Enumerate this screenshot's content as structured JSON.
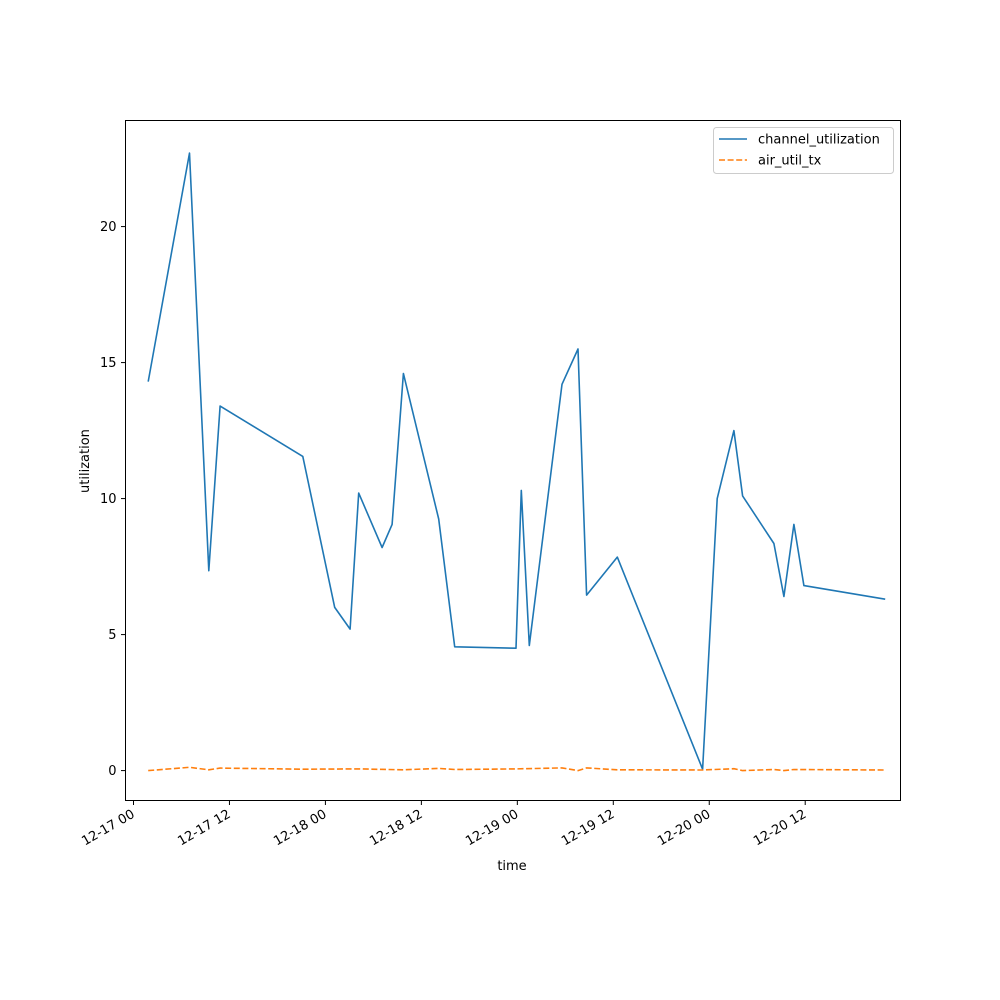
{
  "chart_data": {
    "type": "line",
    "title": "",
    "xlabel": "time",
    "ylabel": "utilization",
    "x_type": "datetime",
    "xlim": [
      "2016-12-16T23:00",
      "2016-12-20T23:55"
    ],
    "ylim": [
      -1.1,
      23.9
    ],
    "grid": false,
    "legend_position": "top-right",
    "x_ticks": [
      {
        "value": "2016-12-17T00:00",
        "label": "12-17 00"
      },
      {
        "value": "2016-12-17T12:00",
        "label": "12-17 12"
      },
      {
        "value": "2016-12-18T00:00",
        "label": "12-18 00"
      },
      {
        "value": "2016-12-18T12:00",
        "label": "12-18 12"
      },
      {
        "value": "2016-12-19T00:00",
        "label": "12-19 00"
      },
      {
        "value": "2016-12-19T12:00",
        "label": "12-19 12"
      },
      {
        "value": "2016-12-20T00:00",
        "label": "12-20 00"
      },
      {
        "value": "2016-12-20T12:00",
        "label": "12-20 12"
      }
    ],
    "y_ticks": [
      {
        "value": 0,
        "label": "0"
      },
      {
        "value": 5,
        "label": "5"
      },
      {
        "value": 10,
        "label": "10"
      },
      {
        "value": 15,
        "label": "15"
      },
      {
        "value": 20,
        "label": "20"
      }
    ],
    "series": [
      {
        "name": "channel_utilization",
        "color": "#1f77b4",
        "dash": "solid",
        "points": [
          {
            "x": "2016-12-17T01:50",
            "y": 14.3
          },
          {
            "x": "2016-12-17T07:00",
            "y": 22.7
          },
          {
            "x": "2016-12-17T09:25",
            "y": 7.35
          },
          {
            "x": "2016-12-17T10:50",
            "y": 13.4
          },
          {
            "x": "2016-12-17T21:10",
            "y": 11.55
          },
          {
            "x": "2016-12-18T01:10",
            "y": 6.0
          },
          {
            "x": "2016-12-18T03:05",
            "y": 5.2
          },
          {
            "x": "2016-12-18T04:10",
            "y": 10.2
          },
          {
            "x": "2016-12-18T07:05",
            "y": 8.2
          },
          {
            "x": "2016-12-18T08:20",
            "y": 9.05
          },
          {
            "x": "2016-12-18T09:45",
            "y": 14.6
          },
          {
            "x": "2016-12-18T14:10",
            "y": 9.25
          },
          {
            "x": "2016-12-18T16:10",
            "y": 4.55
          },
          {
            "x": "2016-12-18T23:50",
            "y": 4.5
          },
          {
            "x": "2016-12-19T00:30",
            "y": 10.3
          },
          {
            "x": "2016-12-19T01:30",
            "y": 4.6
          },
          {
            "x": "2016-12-19T05:35",
            "y": 14.2
          },
          {
            "x": "2016-12-19T07:35",
            "y": 15.5
          },
          {
            "x": "2016-12-19T08:40",
            "y": 6.45
          },
          {
            "x": "2016-12-19T12:30",
            "y": 7.85
          },
          {
            "x": "2016-12-19T23:10",
            "y": 0.05
          },
          {
            "x": "2016-12-20T01:00",
            "y": 10.0
          },
          {
            "x": "2016-12-20T03:05",
            "y": 12.5
          },
          {
            "x": "2016-12-20T04:10",
            "y": 10.1
          },
          {
            "x": "2016-12-20T08:05",
            "y": 8.35
          },
          {
            "x": "2016-12-20T09:20",
            "y": 6.4
          },
          {
            "x": "2016-12-20T10:35",
            "y": 9.05
          },
          {
            "x": "2016-12-20T11:50",
            "y": 6.8
          },
          {
            "x": "2016-12-20T22:00",
            "y": 6.3
          }
        ]
      },
      {
        "name": "air_util_tx",
        "color": "#ff7f0e",
        "dash": "dashed",
        "points": [
          {
            "x": "2016-12-17T01:50",
            "y": 0.0
          },
          {
            "x": "2016-12-17T07:00",
            "y": 0.12
          },
          {
            "x": "2016-12-17T09:25",
            "y": 0.03
          },
          {
            "x": "2016-12-17T10:50",
            "y": 0.09
          },
          {
            "x": "2016-12-17T21:10",
            "y": 0.05
          },
          {
            "x": "2016-12-18T04:10",
            "y": 0.06
          },
          {
            "x": "2016-12-18T09:45",
            "y": 0.03
          },
          {
            "x": "2016-12-18T14:10",
            "y": 0.08
          },
          {
            "x": "2016-12-18T16:10",
            "y": 0.04
          },
          {
            "x": "2016-12-18T23:50",
            "y": 0.06
          },
          {
            "x": "2016-12-19T05:35",
            "y": 0.1
          },
          {
            "x": "2016-12-19T07:35",
            "y": 0.0
          },
          {
            "x": "2016-12-19T08:40",
            "y": 0.1
          },
          {
            "x": "2016-12-19T12:30",
            "y": 0.03
          },
          {
            "x": "2016-12-19T23:10",
            "y": 0.02
          },
          {
            "x": "2016-12-20T03:05",
            "y": 0.07
          },
          {
            "x": "2016-12-20T04:10",
            "y": 0.0
          },
          {
            "x": "2016-12-20T08:05",
            "y": 0.04
          },
          {
            "x": "2016-12-20T09:20",
            "y": 0.0
          },
          {
            "x": "2016-12-20T10:35",
            "y": 0.04
          },
          {
            "x": "2016-12-20T22:00",
            "y": 0.02
          }
        ]
      }
    ]
  }
}
